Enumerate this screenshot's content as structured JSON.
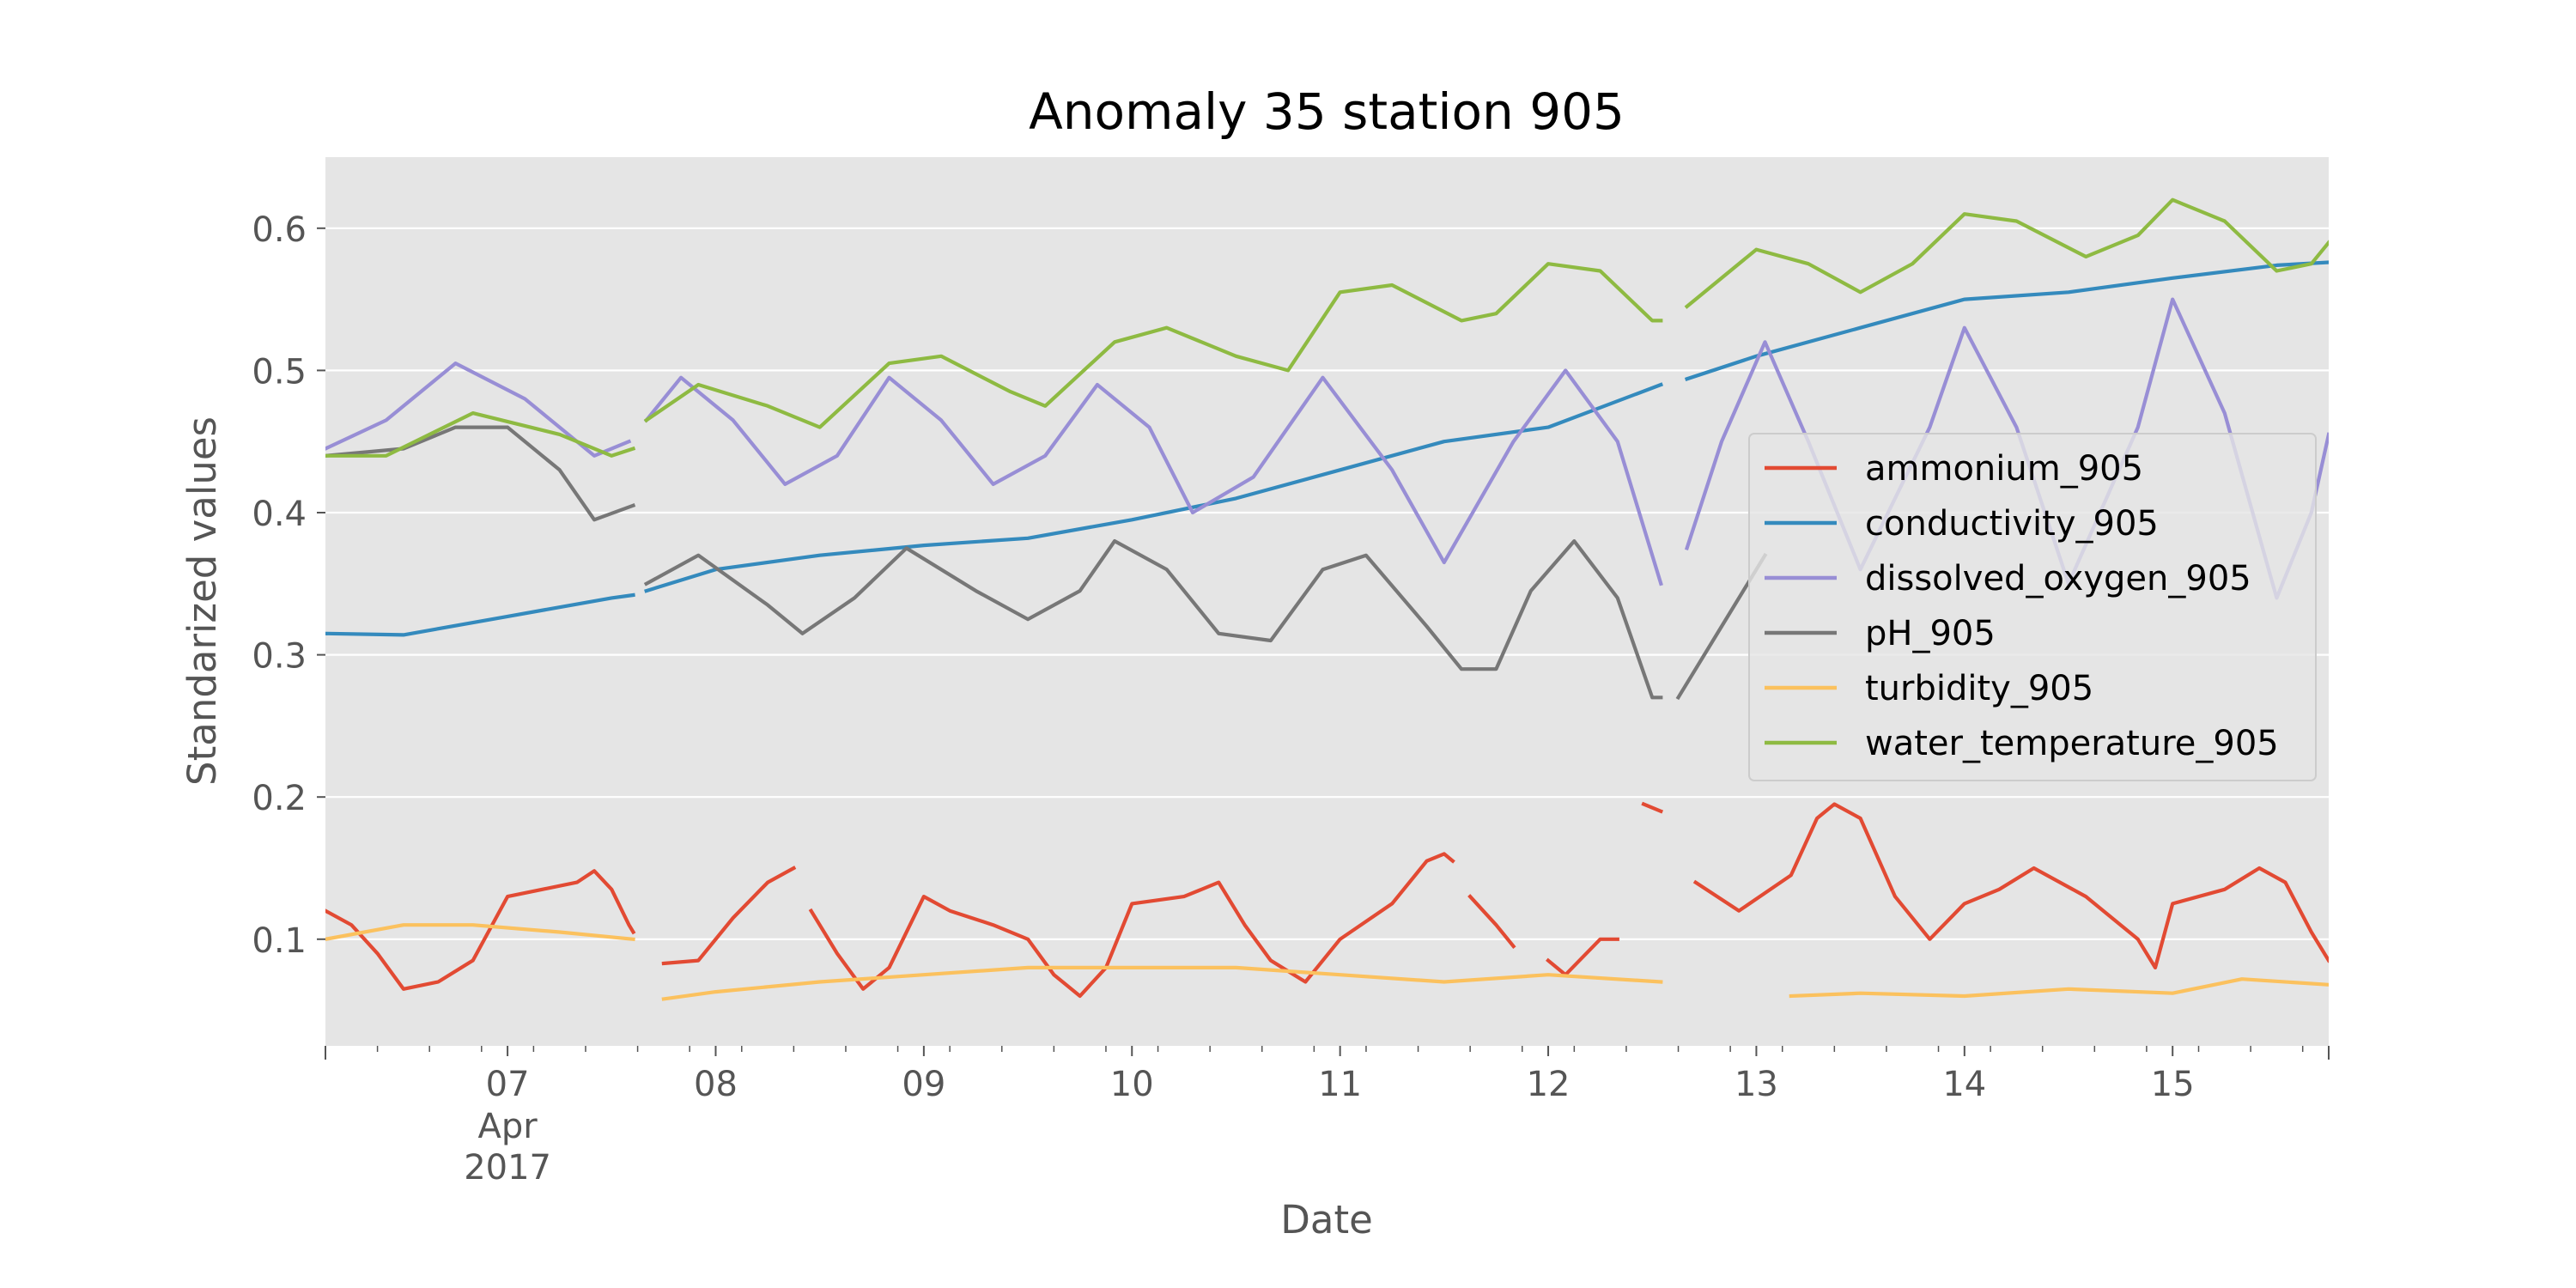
{
  "chart_data": {
    "type": "line",
    "title": "Anomaly 35 station 905",
    "xlabel": "Date",
    "ylabel": "Standarized values",
    "xlim": [
      "2017-04-06T03:00",
      "2017-04-15T18:00"
    ],
    "ylim": [
      0.025,
      0.65
    ],
    "y_ticks": [
      0.1,
      0.2,
      0.3,
      0.4,
      0.5,
      0.6
    ],
    "y_tick_labels": [
      "0.1",
      "0.2",
      "0.3",
      "0.4",
      "0.5",
      "0.6"
    ],
    "x_ticks": [
      "2017-04-07",
      "2017-04-08",
      "2017-04-09",
      "2017-04-10",
      "2017-04-11",
      "2017-04-12",
      "2017-04-13",
      "2017-04-14",
      "2017-04-15"
    ],
    "x_tick_labels": [
      "07",
      "08",
      "09",
      "10",
      "11",
      "12",
      "13",
      "14",
      "15"
    ],
    "x_tick_sublabels": {
      "month": "Apr",
      "year": "2017"
    },
    "grid": true,
    "legend_position": "center-right",
    "background": "#e5e5e5",
    "series": [
      {
        "name": "ammonium_905",
        "color": "#e24a33",
        "points": [
          [
            "2017-04-06T03:00",
            0.12
          ],
          [
            "2017-04-06T06:00",
            0.11
          ],
          [
            "2017-04-06T09:00",
            0.09
          ],
          [
            "2017-04-06T12:00",
            0.065
          ],
          [
            "2017-04-06T16:00",
            0.07
          ],
          [
            "2017-04-06T20:00",
            0.085
          ],
          [
            "2017-04-07T00:00",
            0.13
          ],
          [
            "2017-04-07T04:00",
            0.135
          ],
          [
            "2017-04-07T08:00",
            0.14
          ],
          [
            "2017-04-07T10:00",
            0.148
          ],
          [
            "2017-04-07T12:00",
            0.135
          ],
          [
            "2017-04-07T14:00",
            0.11
          ],
          [
            "2017-04-07T14:30",
            0.105
          ],
          null,
          [
            "2017-04-07T18:00",
            0.083
          ],
          [
            "2017-04-07T22:00",
            0.085
          ],
          [
            "2017-04-08T02:00",
            0.115
          ],
          [
            "2017-04-08T06:00",
            0.14
          ],
          [
            "2017-04-08T09:00",
            0.15
          ],
          null,
          [
            "2017-04-08T11:00",
            0.12
          ],
          [
            "2017-04-08T14:00",
            0.09
          ],
          [
            "2017-04-08T17:00",
            0.065
          ],
          [
            "2017-04-08T20:00",
            0.08
          ],
          [
            "2017-04-09T00:00",
            0.13
          ],
          [
            "2017-04-09T03:00",
            0.12
          ],
          [
            "2017-04-09T08:00",
            0.11
          ],
          [
            "2017-04-09T12:00",
            0.1
          ],
          [
            "2017-04-09T15:00",
            0.075
          ],
          [
            "2017-04-09T18:00",
            0.06
          ],
          [
            "2017-04-09T21:00",
            0.08
          ],
          [
            "2017-04-10T00:00",
            0.125
          ],
          [
            "2017-04-10T06:00",
            0.13
          ],
          [
            "2017-04-10T10:00",
            0.14
          ],
          [
            "2017-04-10T13:00",
            0.11
          ],
          [
            "2017-04-10T16:00",
            0.085
          ],
          [
            "2017-04-10T20:00",
            0.07
          ],
          [
            "2017-04-11T00:00",
            0.1
          ],
          [
            "2017-04-11T06:00",
            0.125
          ],
          [
            "2017-04-11T10:00",
            0.155
          ],
          [
            "2017-04-11T12:00",
            0.16
          ],
          [
            "2017-04-11T13:00",
            0.155
          ],
          null,
          [
            "2017-04-11T15:00",
            0.13
          ],
          [
            "2017-04-11T18:00",
            0.11
          ],
          [
            "2017-04-11T20:00",
            0.095
          ],
          null,
          [
            "2017-04-12T00:00",
            0.085
          ],
          [
            "2017-04-12T02:00",
            0.075
          ],
          [
            "2017-04-12T06:00",
            0.1
          ],
          [
            "2017-04-12T08:00",
            0.1
          ],
          null,
          [
            "2017-04-12T11:00",
            0.195
          ],
          [
            "2017-04-12T13:00",
            0.19
          ],
          null,
          [
            "2017-04-12T17:00",
            0.14
          ],
          [
            "2017-04-12T22:00",
            0.12
          ],
          [
            "2017-04-13T04:00",
            0.145
          ],
          [
            "2017-04-13T07:00",
            0.185
          ],
          [
            "2017-04-13T09:00",
            0.195
          ],
          [
            "2017-04-13T12:00",
            0.185
          ],
          [
            "2017-04-13T16:00",
            0.13
          ],
          [
            "2017-04-13T20:00",
            0.1
          ],
          [
            "2017-04-14T00:00",
            0.125
          ],
          [
            "2017-04-14T04:00",
            0.135
          ],
          [
            "2017-04-14T08:00",
            0.15
          ],
          [
            "2017-04-14T14:00",
            0.13
          ],
          [
            "2017-04-14T20:00",
            0.1
          ],
          [
            "2017-04-14T22:00",
            0.08
          ],
          [
            "2017-04-15T00:00",
            0.125
          ],
          [
            "2017-04-15T06:00",
            0.135
          ],
          [
            "2017-04-15T10:00",
            0.15
          ],
          [
            "2017-04-15T13:00",
            0.14
          ],
          [
            "2017-04-15T16:00",
            0.105
          ],
          [
            "2017-04-15T18:00",
            0.085
          ]
        ]
      },
      {
        "name": "conductivity_905",
        "color": "#348abd",
        "points": [
          [
            "2017-04-06T03:00",
            0.315
          ],
          [
            "2017-04-06T12:00",
            0.314
          ],
          [
            "2017-04-07T00:00",
            0.327
          ],
          [
            "2017-04-07T12:00",
            0.34
          ],
          [
            "2017-04-07T14:30",
            0.342
          ],
          null,
          [
            "2017-04-07T16:00",
            0.345
          ],
          [
            "2017-04-08T00:00",
            0.36
          ],
          [
            "2017-04-08T12:00",
            0.37
          ],
          [
            "2017-04-09T00:00",
            0.377
          ],
          [
            "2017-04-09T12:00",
            0.382
          ],
          [
            "2017-04-10T00:00",
            0.395
          ],
          [
            "2017-04-10T12:00",
            0.41
          ],
          [
            "2017-04-11T00:00",
            0.43
          ],
          [
            "2017-04-11T12:00",
            0.45
          ],
          [
            "2017-04-12T00:00",
            0.46
          ],
          [
            "2017-04-12T13:00",
            0.49
          ],
          null,
          [
            "2017-04-12T16:00",
            0.494
          ],
          [
            "2017-04-13T00:00",
            0.51
          ],
          [
            "2017-04-13T12:00",
            0.53
          ],
          [
            "2017-04-14T00:00",
            0.55
          ],
          [
            "2017-04-14T12:00",
            0.555
          ],
          [
            "2017-04-15T00:00",
            0.565
          ],
          [
            "2017-04-15T12:00",
            0.574
          ],
          [
            "2017-04-15T18:00",
            0.576
          ]
        ]
      },
      {
        "name": "dissolved_oxygen_905",
        "color": "#988ed5",
        "points": [
          [
            "2017-04-06T03:00",
            0.445
          ],
          [
            "2017-04-06T10:00",
            0.465
          ],
          [
            "2017-04-06T18:00",
            0.505
          ],
          [
            "2017-04-07T02:00",
            0.48
          ],
          [
            "2017-04-07T10:00",
            0.44
          ],
          [
            "2017-04-07T14:00",
            0.45
          ],
          null,
          [
            "2017-04-07T16:00",
            0.465
          ],
          [
            "2017-04-07T20:00",
            0.495
          ],
          [
            "2017-04-08T02:00",
            0.465
          ],
          [
            "2017-04-08T08:00",
            0.42
          ],
          [
            "2017-04-08T14:00",
            0.44
          ],
          [
            "2017-04-08T20:00",
            0.495
          ],
          [
            "2017-04-09T02:00",
            0.465
          ],
          [
            "2017-04-09T08:00",
            0.42
          ],
          [
            "2017-04-09T14:00",
            0.44
          ],
          [
            "2017-04-09T20:00",
            0.49
          ],
          [
            "2017-04-10T02:00",
            0.46
          ],
          [
            "2017-04-10T07:00",
            0.4
          ],
          [
            "2017-04-10T14:00",
            0.425
          ],
          [
            "2017-04-10T22:00",
            0.495
          ],
          [
            "2017-04-11T06:00",
            0.43
          ],
          [
            "2017-04-11T12:00",
            0.365
          ],
          [
            "2017-04-11T20:00",
            0.45
          ],
          [
            "2017-04-12T02:00",
            0.5
          ],
          [
            "2017-04-12T08:00",
            0.45
          ],
          [
            "2017-04-12T13:00",
            0.35
          ],
          null,
          [
            "2017-04-12T16:00",
            0.375
          ],
          [
            "2017-04-12T20:00",
            0.45
          ],
          [
            "2017-04-13T01:00",
            0.52
          ],
          [
            "2017-04-13T06:00",
            0.45
          ],
          [
            "2017-04-13T12:00",
            0.36
          ],
          [
            "2017-04-13T20:00",
            0.46
          ],
          [
            "2017-04-14T00:00",
            0.53
          ],
          [
            "2017-04-14T06:00",
            0.46
          ],
          [
            "2017-04-14T12:00",
            0.35
          ],
          [
            "2017-04-14T20:00",
            0.46
          ],
          [
            "2017-04-15T00:00",
            0.55
          ],
          [
            "2017-04-15T06:00",
            0.47
          ],
          [
            "2017-04-15T12:00",
            0.34
          ],
          [
            "2017-04-15T16:00",
            0.4
          ],
          [
            "2017-04-15T18:00",
            0.455
          ]
        ]
      },
      {
        "name": "pH_905",
        "color": "#777777",
        "points": [
          [
            "2017-04-06T03:00",
            0.44
          ],
          [
            "2017-04-06T12:00",
            0.445
          ],
          [
            "2017-04-06T18:00",
            0.46
          ],
          [
            "2017-04-07T00:00",
            0.46
          ],
          [
            "2017-04-07T06:00",
            0.43
          ],
          [
            "2017-04-07T10:00",
            0.395
          ],
          [
            "2017-04-07T14:30",
            0.405
          ],
          null,
          [
            "2017-04-07T16:00",
            0.35
          ],
          [
            "2017-04-07T22:00",
            0.37
          ],
          [
            "2017-04-08T06:00",
            0.335
          ],
          [
            "2017-04-08T10:00",
            0.315
          ],
          [
            "2017-04-08T16:00",
            0.34
          ],
          [
            "2017-04-08T22:00",
            0.375
          ],
          [
            "2017-04-09T06:00",
            0.345
          ],
          [
            "2017-04-09T12:00",
            0.325
          ],
          [
            "2017-04-09T18:00",
            0.345
          ],
          [
            "2017-04-09T22:00",
            0.38
          ],
          [
            "2017-04-10T04:00",
            0.36
          ],
          [
            "2017-04-10T10:00",
            0.315
          ],
          [
            "2017-04-10T16:00",
            0.31
          ],
          [
            "2017-04-10T22:00",
            0.36
          ],
          [
            "2017-04-11T03:00",
            0.37
          ],
          [
            "2017-04-11T10:00",
            0.32
          ],
          [
            "2017-04-11T14:00",
            0.29
          ],
          [
            "2017-04-11T18:00",
            0.29
          ],
          [
            "2017-04-11T22:00",
            0.345
          ],
          [
            "2017-04-12T03:00",
            0.38
          ],
          [
            "2017-04-12T08:00",
            0.34
          ],
          [
            "2017-04-12T12:00",
            0.27
          ],
          [
            "2017-04-12T13:00",
            0.27
          ],
          null,
          [
            "2017-04-12T15:00",
            0.27
          ],
          [
            "2017-04-12T20:00",
            0.32
          ],
          [
            "2017-04-13T01:00",
            0.37
          ]
        ]
      },
      {
        "name": "turbidity_905",
        "color": "#fbc15e",
        "points": [
          [
            "2017-04-06T03:00",
            0.1
          ],
          [
            "2017-04-06T12:00",
            0.11
          ],
          [
            "2017-04-06T20:00",
            0.11
          ],
          [
            "2017-04-07T06:00",
            0.105
          ],
          [
            "2017-04-07T14:30",
            0.1
          ],
          null,
          [
            "2017-04-07T18:00",
            0.058
          ],
          [
            "2017-04-08T00:00",
            0.063
          ],
          [
            "2017-04-08T12:00",
            0.07
          ],
          [
            "2017-04-09T00:00",
            0.075
          ],
          [
            "2017-04-09T12:00",
            0.08
          ],
          [
            "2017-04-10T00:00",
            0.08
          ],
          [
            "2017-04-10T12:00",
            0.08
          ],
          [
            "2017-04-11T00:00",
            0.075
          ],
          [
            "2017-04-11T12:00",
            0.07
          ],
          [
            "2017-04-12T00:00",
            0.075
          ],
          [
            "2017-04-12T13:00",
            0.07
          ],
          null,
          [
            "2017-04-13T04:00",
            0.06
          ],
          [
            "2017-04-13T12:00",
            0.062
          ],
          [
            "2017-04-14T00:00",
            0.06
          ],
          [
            "2017-04-14T12:00",
            0.065
          ],
          [
            "2017-04-15T00:00",
            0.062
          ],
          [
            "2017-04-15T08:00",
            0.072
          ],
          [
            "2017-04-15T18:00",
            0.068
          ]
        ]
      },
      {
        "name": "water_temperature_905",
        "color": "#8eba42",
        "points": [
          [
            "2017-04-06T03:00",
            0.44
          ],
          [
            "2017-04-06T10:00",
            0.44
          ],
          [
            "2017-04-06T20:00",
            0.47
          ],
          [
            "2017-04-07T06:00",
            0.455
          ],
          [
            "2017-04-07T12:00",
            0.44
          ],
          [
            "2017-04-07T14:30",
            0.445
          ],
          null,
          [
            "2017-04-07T16:00",
            0.465
          ],
          [
            "2017-04-07T22:00",
            0.49
          ],
          [
            "2017-04-08T06:00",
            0.475
          ],
          [
            "2017-04-08T12:00",
            0.46
          ],
          [
            "2017-04-08T20:00",
            0.505
          ],
          [
            "2017-04-09T02:00",
            0.51
          ],
          [
            "2017-04-09T10:00",
            0.485
          ],
          [
            "2017-04-09T14:00",
            0.475
          ],
          [
            "2017-04-09T22:00",
            0.52
          ],
          [
            "2017-04-10T04:00",
            0.53
          ],
          [
            "2017-04-10T12:00",
            0.51
          ],
          [
            "2017-04-10T18:00",
            0.5
          ],
          [
            "2017-04-11T00:00",
            0.555
          ],
          [
            "2017-04-11T06:00",
            0.56
          ],
          [
            "2017-04-11T14:00",
            0.535
          ],
          [
            "2017-04-11T18:00",
            0.54
          ],
          [
            "2017-04-12T00:00",
            0.575
          ],
          [
            "2017-04-12T06:00",
            0.57
          ],
          [
            "2017-04-12T12:00",
            0.535
          ],
          [
            "2017-04-12T13:00",
            0.535
          ],
          null,
          [
            "2017-04-12T16:00",
            0.545
          ],
          [
            "2017-04-13T00:00",
            0.585
          ],
          [
            "2017-04-13T06:00",
            0.575
          ],
          [
            "2017-04-13T12:00",
            0.555
          ],
          [
            "2017-04-13T18:00",
            0.575
          ],
          [
            "2017-04-14T00:00",
            0.61
          ],
          [
            "2017-04-14T06:00",
            0.605
          ],
          [
            "2017-04-14T14:00",
            0.58
          ],
          [
            "2017-04-14T20:00",
            0.595
          ],
          [
            "2017-04-15T00:00",
            0.62
          ],
          [
            "2017-04-15T06:00",
            0.605
          ],
          [
            "2017-04-15T12:00",
            0.57
          ],
          [
            "2017-04-15T16:00",
            0.575
          ],
          [
            "2017-04-15T18:00",
            0.59
          ]
        ]
      }
    ]
  }
}
